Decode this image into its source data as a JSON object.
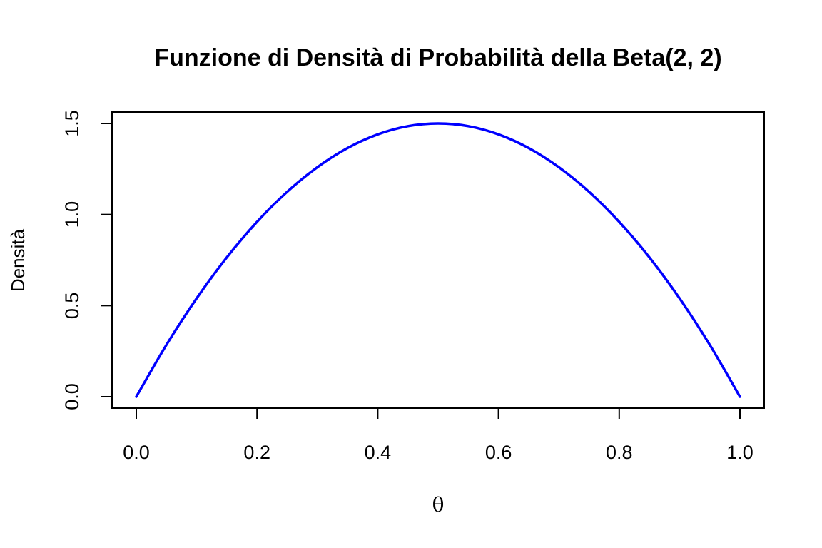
{
  "chart_data": {
    "type": "line",
    "title": "Funzione di Densità di Probabilità della Beta(2, 2)",
    "xlabel": "θ",
    "ylabel": "Densità",
    "xlim": [
      0,
      1
    ],
    "ylim": [
      0,
      1.5
    ],
    "x_ticks": [
      "0.0",
      "0.2",
      "0.4",
      "0.6",
      "0.8",
      "1.0"
    ],
    "y_ticks": [
      "0.0",
      "0.5",
      "1.0",
      "1.5"
    ],
    "grid": false,
    "series": [
      {
        "color": "#0000ff",
        "x": [
          0.0,
          0.05,
          0.1,
          0.15,
          0.2,
          0.25,
          0.3,
          0.35,
          0.4,
          0.45,
          0.5,
          0.55,
          0.6,
          0.65,
          0.7,
          0.75,
          0.8,
          0.85,
          0.9,
          0.95,
          1.0
        ],
        "y": [
          0.0,
          0.285,
          0.54,
          0.765,
          0.96,
          1.125,
          1.26,
          1.365,
          1.44,
          1.485,
          1.5,
          1.485,
          1.44,
          1.365,
          1.26,
          1.125,
          0.96,
          0.765,
          0.54,
          0.285,
          0.0
        ]
      }
    ]
  }
}
